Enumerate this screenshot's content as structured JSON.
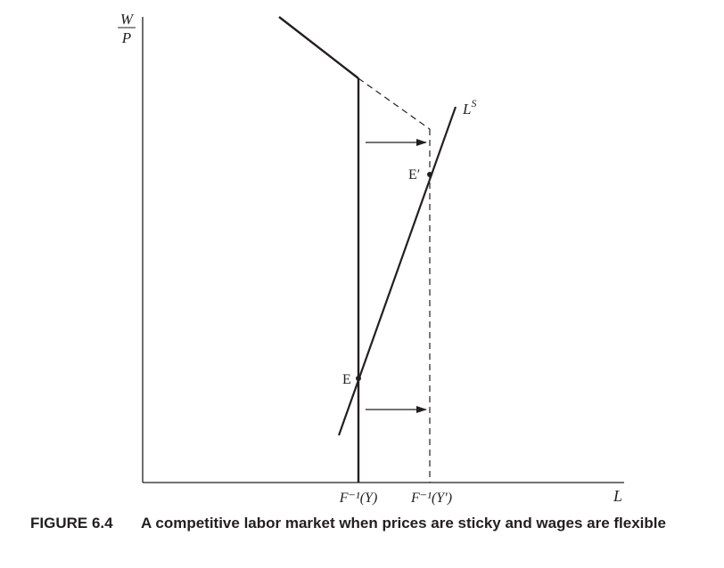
{
  "figure": {
    "number": "FIGURE 6.4",
    "caption": "A competitive labor market when prices are sticky and wages are flexible"
  },
  "axes": {
    "y_label_numerator": "W",
    "y_label_denominator": "P",
    "x_label": "L"
  },
  "curves": {
    "labor_supply_label": "L",
    "labor_supply_superscript": "S"
  },
  "points": {
    "e": "E",
    "e_prime": "E′"
  },
  "ticks": {
    "x1": "F⁻¹(Y)",
    "x2": "F⁻¹(Y′)"
  },
  "colors": {
    "ink": "#231f20"
  }
}
